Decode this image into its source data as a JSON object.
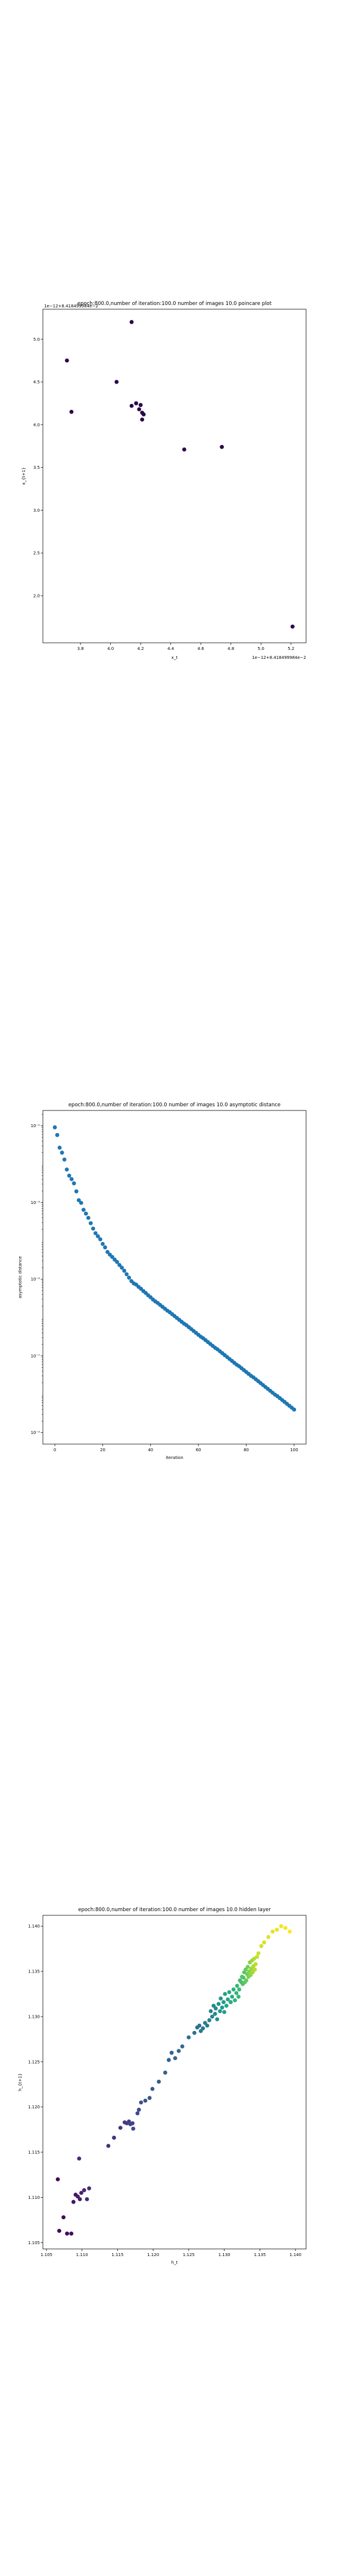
{
  "chart_data": [
    {
      "type": "scatter",
      "title": "epoch:800.0,number of iteration:100.0  number of images 10.0 poincare plot",
      "xlabel": "x_t",
      "ylabel": "x_{t+1}",
      "offset_text_x": "1e−12+8.418499984e−2",
      "offset_text_y": "1e−12+8.418499984e−2",
      "xlim": [
        3.55,
        5.3
      ],
      "ylim": [
        1.45,
        5.35
      ],
      "xticks": [
        3.8,
        4.0,
        4.2,
        4.4,
        4.6,
        4.8,
        5.0,
        5.2
      ],
      "yticks": [
        2.0,
        2.5,
        3.0,
        3.5,
        4.0,
        4.5,
        5.0
      ],
      "color": "#2a0a4a",
      "points": [
        [
          3.71,
          4.75
        ],
        [
          3.74,
          4.15
        ],
        [
          4.04,
          4.5
        ],
        [
          4.14,
          5.2
        ],
        [
          4.14,
          4.22
        ],
        [
          4.17,
          4.25
        ],
        [
          4.19,
          4.18
        ],
        [
          4.2,
          4.23
        ],
        [
          4.21,
          4.14
        ],
        [
          4.21,
          4.06
        ],
        [
          4.22,
          4.12
        ],
        [
          4.49,
          3.71
        ],
        [
          4.74,
          3.74
        ],
        [
          5.21,
          1.64
        ]
      ]
    },
    {
      "type": "scatter",
      "title": "epoch:800.0,number of iteration:100.0  number of images 10.0 asymptotic distance",
      "xlabel": "iteration",
      "ylabel": "asymptotic distance",
      "scale_y": "log",
      "xlim": [
        -5,
        105
      ],
      "ylim_log10": [
        -9.3,
        -0.6
      ],
      "xticks": [
        0,
        20,
        40,
        60,
        80,
        100
      ],
      "yticks": [
        "10⁻¹",
        "10⁻³",
        "10⁻⁵",
        "10⁻⁷",
        "10⁻⁹"
      ],
      "ytick_exponents": [
        -1,
        -3,
        -5,
        -7,
        -9
      ],
      "color": "#1f77b4",
      "x": [
        0,
        1,
        2,
        3,
        4,
        5,
        6,
        7,
        8,
        9,
        10,
        11,
        12,
        13,
        14,
        15,
        16,
        17,
        18,
        19,
        20,
        21,
        22,
        23,
        24,
        25,
        26,
        27,
        28,
        29,
        30,
        31,
        32,
        33,
        34,
        35,
        36,
        37,
        38,
        39,
        40,
        41,
        42,
        43,
        44,
        45,
        46,
        47,
        48,
        49,
        50,
        51,
        52,
        53,
        54,
        55,
        56,
        57,
        58,
        59,
        60,
        61,
        62,
        63,
        64,
        65,
        66,
        67,
        68,
        69,
        70,
        71,
        72,
        73,
        74,
        75,
        76,
        77,
        78,
        79,
        80,
        81,
        82,
        83,
        84,
        85,
        86,
        87,
        88,
        89,
        90,
        91,
        92,
        93,
        94,
        95,
        96,
        97,
        98,
        99,
        100
      ],
      "log10_y": [
        -1.04,
        -1.24,
        -1.57,
        -1.7,
        -1.88,
        -2.14,
        -2.3,
        -2.39,
        -2.5,
        -2.71,
        -2.94,
        -3.01,
        -3.19,
        -3.29,
        -3.4,
        -3.54,
        -3.68,
        -3.8,
        -3.88,
        -3.96,
        -4.08,
        -4.17,
        -4.29,
        -4.36,
        -4.42,
        -4.49,
        -4.55,
        -4.63,
        -4.7,
        -4.78,
        -4.87,
        -4.96,
        -5.05,
        -5.11,
        -5.14,
        -5.2,
        -5.25,
        -5.31,
        -5.36,
        -5.42,
        -5.47,
        -5.53,
        -5.58,
        -5.62,
        -5.67,
        -5.72,
        -5.77,
        -5.82,
        -5.86,
        -5.91,
        -5.96,
        -6.01,
        -6.06,
        -6.11,
        -6.16,
        -6.2,
        -6.25,
        -6.3,
        -6.35,
        -6.4,
        -6.45,
        -6.5,
        -6.54,
        -6.59,
        -6.64,
        -6.69,
        -6.74,
        -6.79,
        -6.83,
        -6.88,
        -6.93,
        -6.98,
        -7.03,
        -7.08,
        -7.13,
        -7.18,
        -7.23,
        -7.27,
        -7.32,
        -7.37,
        -7.42,
        -7.47,
        -7.52,
        -7.56,
        -7.61,
        -7.66,
        -7.71,
        -7.76,
        -7.81,
        -7.86,
        -7.91,
        -7.96,
        -8.01,
        -8.05,
        -8.1,
        -8.15,
        -8.2,
        -8.25,
        -8.3,
        -8.35,
        -8.4
      ]
    },
    {
      "type": "scatter",
      "title": "epoch:800.0,number of iteration:100.0  number of images 10.0 hidden layer",
      "xlabel": "h_t",
      "ylabel": "h_{t+1}",
      "xlim": [
        1.1045,
        1.1415
      ],
      "ylim": [
        1.1043,
        1.1412
      ],
      "xticks": [
        1.105,
        1.11,
        1.115,
        1.12,
        1.125,
        1.13,
        1.135,
        1.14
      ],
      "yticks": [
        1.105,
        1.11,
        1.115,
        1.12,
        1.125,
        1.13,
        1.135,
        1.14
      ],
      "colormap": "viridis",
      "points": [
        [
          1.1066,
          1.112
        ],
        [
          1.1074,
          1.1078
        ],
        [
          1.1068,
          1.1063
        ],
        [
          1.1079,
          1.106
        ],
        [
          1.1085,
          1.106
        ],
        [
          1.1088,
          1.1095
        ],
        [
          1.1091,
          1.1103
        ],
        [
          1.1094,
          1.1101
        ],
        [
          1.1097,
          1.1098
        ],
        [
          1.1099,
          1.1105
        ],
        [
          1.1103,
          1.1108
        ],
        [
          1.1096,
          1.1143
        ],
        [
          1.1107,
          1.1098
        ],
        [
          1.111,
          1.111
        ],
        [
          1.1137,
          1.1157
        ],
        [
          1.1145,
          1.1166
        ],
        [
          1.1154,
          1.1177
        ],
        [
          1.116,
          1.1183
        ],
        [
          1.1163,
          1.1182
        ],
        [
          1.1166,
          1.1184
        ],
        [
          1.1168,
          1.1181
        ],
        [
          1.1171,
          1.1182
        ],
        [
          1.1172,
          1.1176
        ],
        [
          1.1178,
          1.1193
        ],
        [
          1.118,
          1.1197
        ],
        [
          1.1183,
          1.1205
        ],
        [
          1.1189,
          1.1207
        ],
        [
          1.1195,
          1.121
        ],
        [
          1.1199,
          1.122
        ],
        [
          1.1208,
          1.1228
        ],
        [
          1.1217,
          1.1238
        ],
        [
          1.1222,
          1.1252
        ],
        [
          1.1226,
          1.126
        ],
        [
          1.1231,
          1.1254
        ],
        [
          1.1236,
          1.1262
        ],
        [
          1.1241,
          1.1267
        ],
        [
          1.125,
          1.1277
        ],
        [
          1.1258,
          1.1282
        ],
        [
          1.1262,
          1.1288
        ],
        [
          1.1265,
          1.129
        ],
        [
          1.1267,
          1.1284
        ],
        [
          1.127,
          1.1287
        ],
        [
          1.1273,
          1.1293
        ],
        [
          1.1276,
          1.129
        ],
        [
          1.1279,
          1.1296
        ],
        [
          1.1281,
          1.1306
        ],
        [
          1.1283,
          1.13
        ],
        [
          1.1285,
          1.1312
        ],
        [
          1.1287,
          1.1303
        ],
        [
          1.1288,
          1.1309
        ],
        [
          1.129,
          1.1297
        ],
        [
          1.1292,
          1.1314
        ],
        [
          1.1294,
          1.1306
        ],
        [
          1.1295,
          1.132
        ],
        [
          1.1297,
          1.131
        ],
        [
          1.1299,
          1.1316
        ],
        [
          1.13,
          1.1305
        ],
        [
          1.1301,
          1.1325
        ],
        [
          1.1303,
          1.1312
        ],
        [
          1.1305,
          1.1319
        ],
        [
          1.1307,
          1.1327
        ],
        [
          1.1309,
          1.1316
        ],
        [
          1.1311,
          1.1322
        ],
        [
          1.1313,
          1.133
        ],
        [
          1.1315,
          1.1318
        ],
        [
          1.1317,
          1.1326
        ],
        [
          1.1318,
          1.1334
        ],
        [
          1.132,
          1.1322
        ],
        [
          1.1321,
          1.133
        ],
        [
          1.1322,
          1.134
        ],
        [
          1.1324,
          1.1338
        ],
        [
          1.1325,
          1.1344
        ],
        [
          1.1326,
          1.1336
        ],
        [
          1.1327,
          1.1343
        ],
        [
          1.1328,
          1.1349
        ],
        [
          1.1329,
          1.1338
        ],
        [
          1.133,
          1.1352
        ],
        [
          1.1331,
          1.134
        ],
        [
          1.1332,
          1.1347
        ],
        [
          1.1333,
          1.1355
        ],
        [
          1.1334,
          1.1344
        ],
        [
          1.1335,
          1.135
        ],
        [
          1.1336,
          1.136
        ],
        [
          1.1337,
          1.1346
        ],
        [
          1.1338,
          1.1353
        ],
        [
          1.1339,
          1.1362
        ],
        [
          1.134,
          1.1349
        ],
        [
          1.1341,
          1.1356
        ],
        [
          1.1342,
          1.1364
        ],
        [
          1.1343,
          1.1352
        ],
        [
          1.1344,
          1.1358
        ],
        [
          1.1346,
          1.1366
        ],
        [
          1.1348,
          1.137
        ],
        [
          1.1352,
          1.1378
        ],
        [
          1.1356,
          1.1382
        ],
        [
          1.1362,
          1.1388
        ],
        [
          1.1368,
          1.1394
        ],
        [
          1.1374,
          1.1396
        ],
        [
          1.138,
          1.14
        ],
        [
          1.1386,
          1.1398
        ],
        [
          1.1392,
          1.1394
        ]
      ]
    }
  ]
}
